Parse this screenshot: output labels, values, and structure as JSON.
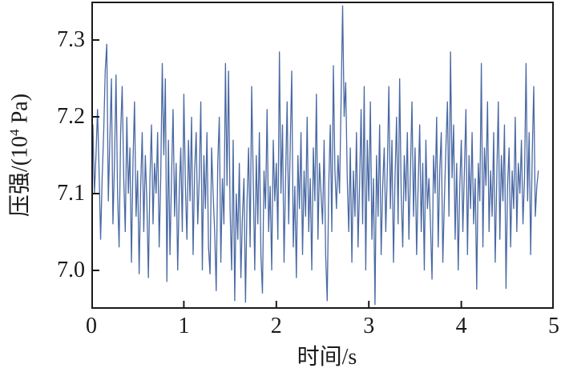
{
  "chart_data": {
    "type": "line",
    "title": "",
    "xlabel": "时间/s",
    "ylabel": "压强/(10⁴ Pa)",
    "ylabel_parts": {
      "prefix": "压强/(10",
      "superscript": "4",
      "suffix": " Pa)"
    },
    "xlim": [
      0,
      5
    ],
    "ylim": [
      6.95,
      7.35
    ],
    "x_ticks": [
      0,
      1,
      2,
      3,
      4,
      5
    ],
    "x_tick_labels": [
      "0",
      "1",
      "2",
      "3",
      "4",
      "5"
    ],
    "y_ticks": [
      7.0,
      7.1,
      7.2,
      7.3
    ],
    "y_tick_labels": [
      "7.0",
      "7.1",
      "7.2",
      "7.3"
    ],
    "grid": false,
    "legend": null,
    "line_color": "#4a69a3",
    "axis_color": "#1a1a1a",
    "background": "#ffffff",
    "x_start": 0,
    "x_step": 0.016667,
    "x_end": 4.833,
    "values": [
      7.16,
      7.19,
      7.1,
      7.15,
      7.21,
      7.13,
      7.04,
      7.12,
      7.18,
      7.26,
      7.295,
      7.09,
      7.17,
      7.25,
      7.06,
      7.14,
      7.255,
      7.1,
      7.03,
      7.18,
      7.24,
      7.12,
      7.05,
      7.2,
      7.1,
      7.16,
      7.01,
      7.14,
      7.22,
      7.07,
      7.13,
      6.995,
      7.11,
      7.18,
      7.05,
      7.15,
      7.09,
      6.99,
      7.12,
      7.19,
      7.06,
      7.14,
      7.1,
      7.18,
      7.03,
      7.12,
      7.27,
      7.15,
      7.25,
      6.985,
      7.17,
      7.02,
      7.12,
      7.21,
      7.07,
      7.14,
      7.0,
      7.1,
      7.16,
      7.05,
      7.23,
      7.11,
      7.04,
      7.17,
      7.09,
      7.2,
      7.02,
      7.13,
      7.18,
      7.06,
      7.12,
      7.22,
      7.0,
      7.15,
      7.08,
      7.18,
      7.03,
      6.995,
      7.16,
      7.1,
      7.05,
      6.973,
      7.14,
      7.2,
      7.01,
      7.12,
      7.06,
      7.27,
      7.11,
      7.26,
      7.08,
      7.0,
      7.17,
      6.96,
      7.1,
      7.04,
      7.14,
      6.99,
      7.07,
      7.12,
      6.958,
      7.09,
      7.16,
      7.03,
      7.24,
      7.12,
      7.0,
      7.15,
      7.06,
      7.18,
      7.02,
      6.97,
      7.13,
      7.08,
      7.21,
      7.05,
      7.11,
      7.0,
      7.17,
      7.09,
      7.14,
      7.04,
      7.285,
      7.1,
      7.19,
      7.01,
      7.12,
      7.22,
      7.06,
      7.16,
      7.26,
      7.03,
      7.11,
      6.99,
      7.15,
      7.08,
      7.18,
      7.02,
      7.13,
      7.07,
      7.2,
      7.05,
      7.12,
      7.0,
      7.16,
      7.09,
      7.23,
      7.04,
      7.14,
      7.1,
      7.06,
      7.17,
      7.02,
      6.96,
      7.11,
      7.19,
      7.05,
      7.267,
      7.13,
      7.08,
      7.15,
      7.1,
      7.22,
      7.345,
      7.2,
      7.245,
      7.12,
      7.05,
      7.16,
      7.01,
      7.13,
      7.07,
      7.18,
      7.03,
      7.11,
      7.21,
      7.06,
      7.24,
      7.0,
      7.17,
      7.09,
      7.22,
      7.04,
      7.12,
      6.955,
      7.15,
      7.07,
      7.19,
      7.02,
      7.11,
      7.16,
      7.05,
      7.13,
      7.24,
      7.08,
      7.17,
      7.01,
      7.12,
      7.2,
      7.06,
      7.25,
      7.1,
      7.03,
      7.15,
      7.09,
      7.18,
      7.04,
      7.13,
      7.22,
      7.07,
      7.16,
      7.02,
      7.11,
      7.19,
      7.05,
      7.14,
      7.0,
      7.17,
      7.08,
      7.12,
      7.06,
      6.988,
      7.15,
      7.1,
      7.2,
      7.03,
      7.13,
      7.18,
      7.01,
      7.09,
      7.16,
      7.22,
      7.07,
      7.285,
      7.12,
      7.19,
      7.04,
      7.14,
      7.0,
      7.11,
      7.17,
      7.05,
      7.13,
      7.21,
      7.02,
      7.15,
      7.08,
      7.18,
      7.06,
      7.12,
      6.975,
      7.14,
      7.09,
      7.27,
      7.03,
      7.16,
      7.11,
      7.22,
      7.05,
      7.13,
      7.07,
      7.18,
      7.01,
      7.12,
      7.22,
      7.04,
      7.15,
      7.09,
      7.19,
      6.976,
      7.11,
      7.16,
      7.03,
      7.13,
      7.08,
      7.2,
      7.05,
      7.14,
      7.1,
      7.17,
      7.06,
      7.12,
      7.27,
      7.09,
      7.18,
      7.02,
      7.15,
      7.24,
      7.07,
      7.11,
      7.13
    ]
  }
}
